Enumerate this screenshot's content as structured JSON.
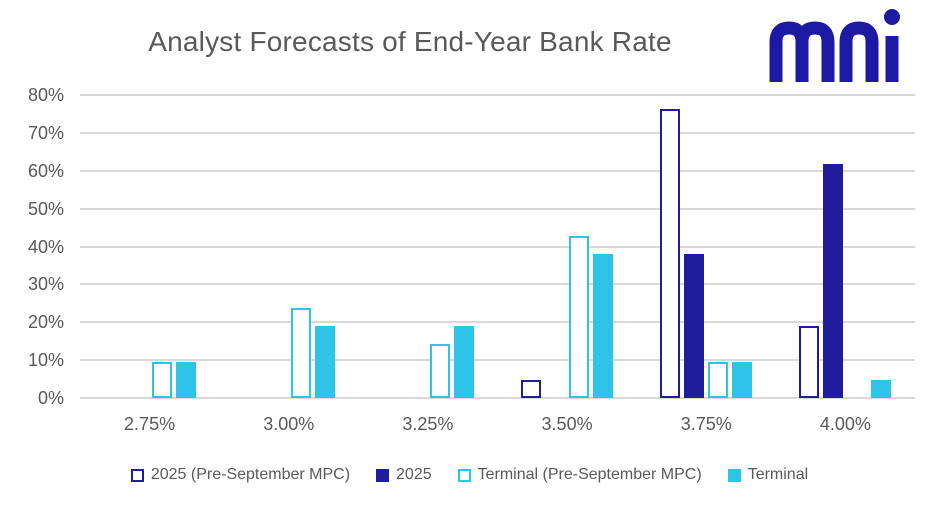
{
  "title": "Analyst Forecasts of End-Year Bank Rate",
  "logo": {
    "text": "mni",
    "color": "#1c19a3"
  },
  "colors": {
    "navy": "#1f1d9c",
    "cyan": "#2ec4e8",
    "gridline": "#d9d9d9",
    "axis_text": "#595959",
    "title_text": "#595959",
    "background": "#ffffff"
  },
  "chart_data": {
    "type": "bar",
    "title": "Analyst Forecasts of End-Year Bank Rate",
    "xlabel": "",
    "ylabel": "",
    "categories": [
      "2.75%",
      "3.00%",
      "3.25%",
      "3.50%",
      "3.75%",
      "4.00%"
    ],
    "series": [
      {
        "name": "2025 (Pre-September MPC)",
        "style": "outline",
        "color": "#1f1d9c",
        "values": [
          0,
          0,
          0,
          4.8,
          76.2,
          19.0
        ]
      },
      {
        "name": "2025",
        "style": "solid",
        "color": "#1f1d9c",
        "values": [
          0,
          0,
          0,
          0,
          38.1,
          61.9
        ]
      },
      {
        "name": "Terminal (Pre-September MPC)",
        "style": "outline",
        "color": "#2ec4e8",
        "values": [
          9.5,
          23.8,
          14.3,
          42.9,
          9.5,
          0
        ]
      },
      {
        "name": "Terminal",
        "style": "solid",
        "color": "#2ec4e8",
        "values": [
          9.5,
          19.0,
          19.0,
          38.1,
          9.5,
          4.8
        ]
      }
    ],
    "y_ticks": [
      "0%",
      "10%",
      "20%",
      "30%",
      "40%",
      "50%",
      "60%",
      "70%",
      "80%"
    ],
    "y_tick_values": [
      0,
      10,
      20,
      30,
      40,
      50,
      60,
      70,
      80
    ],
    "ylim": [
      0,
      80
    ],
    "grid": true,
    "legend_position": "bottom"
  }
}
